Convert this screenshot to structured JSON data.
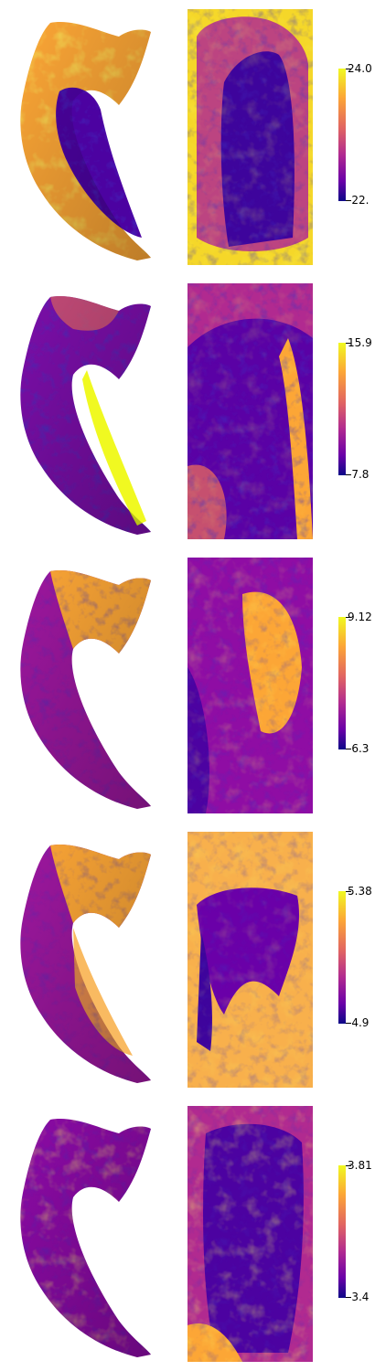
{
  "colormap": [
    "#0d0887",
    "#6a00a8",
    "#b12a90",
    "#e16462",
    "#fca636",
    "#f0f921"
  ],
  "panels": [
    {
      "colorbar": {
        "max": "24.0",
        "min": "-22."
      }
    },
    {
      "colorbar": {
        "max": "15.9",
        "min": "-7.8"
      }
    },
    {
      "colorbar": {
        "max": "9.12",
        "min": "-6.3"
      }
    },
    {
      "colorbar": {
        "max": "5.38",
        "min": "-4.9"
      }
    },
    {
      "colorbar": {
        "max": "3.81",
        "min": "-3.4"
      }
    }
  ]
}
